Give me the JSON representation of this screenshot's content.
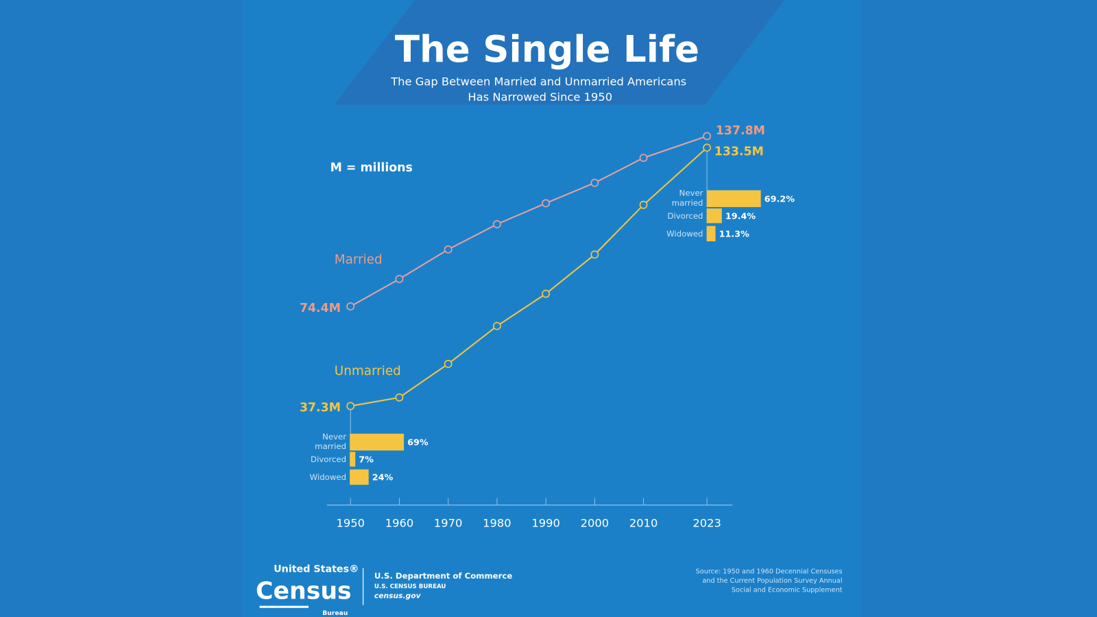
{
  "chart_data": {
    "type": "line",
    "title": "The Single Life",
    "subtitle": [
      "The Gap Between Married and Unmarried Americans",
      "Has Narrowed Since 1950"
    ],
    "note": "M = millions",
    "x": [
      1950,
      1960,
      1970,
      1980,
      1990,
      2000,
      2010,
      2023
    ],
    "x_tick_labels": [
      "1950",
      "1960",
      "1970",
      "1980",
      "1990",
      "2000",
      "2010",
      "2023"
    ],
    "xlim": [
      1945,
      2028
    ],
    "grid": false,
    "series": [
      {
        "name": "Married",
        "color": "#e8a09c",
        "label_color": "#f29a84",
        "values": [
          74.4,
          84.6,
          95.6,
          105.0,
          112.8,
          120.4,
          129.7,
          137.8
        ],
        "start_label": "74.4M",
        "end_label": "137.8M"
      },
      {
        "name": "Unmarried",
        "color": "#f5c542",
        "label_color": "#f5c542",
        "values": [
          37.3,
          40.5,
          53.0,
          67.1,
          79.1,
          93.7,
          112.2,
          133.5
        ],
        "start_label": "37.3M",
        "end_label": "133.5M"
      }
    ],
    "breakdowns": [
      {
        "year": 1950,
        "items": [
          {
            "label": [
              "Never",
              "married"
            ],
            "value": 69,
            "text": "69%"
          },
          {
            "label": [
              "Divorced"
            ],
            "value": 7,
            "text": "7%"
          },
          {
            "label": [
              "Widowed"
            ],
            "value": 24,
            "text": "24%"
          }
        ]
      },
      {
        "year": 2023,
        "items": [
          {
            "label": [
              "Never",
              "married"
            ],
            "value": 69.2,
            "text": "69.2%"
          },
          {
            "label": [
              "Divorced"
            ],
            "value": 19.4,
            "text": "19.4%"
          },
          {
            "label": [
              "Widowed"
            ],
            "value": 11.3,
            "text": "11.3%"
          }
        ]
      }
    ],
    "bar_color": "#f5c542"
  },
  "footer": {
    "logo_top": "United States®",
    "logo_main": "Census",
    "logo_bottom": "Bureau",
    "dept": "U.S. Department of Commerce",
    "bureau": "U.S. CENSUS BUREAU",
    "site": "census.gov",
    "source": [
      "Source: 1950 and 1960 Decennial Censuses",
      "and the Current Population Survey Annual",
      "Social and Economic Supplement"
    ]
  },
  "colors": {
    "background": "#2079c3",
    "panel": "#1c80c8",
    "band": "#2470b8"
  }
}
